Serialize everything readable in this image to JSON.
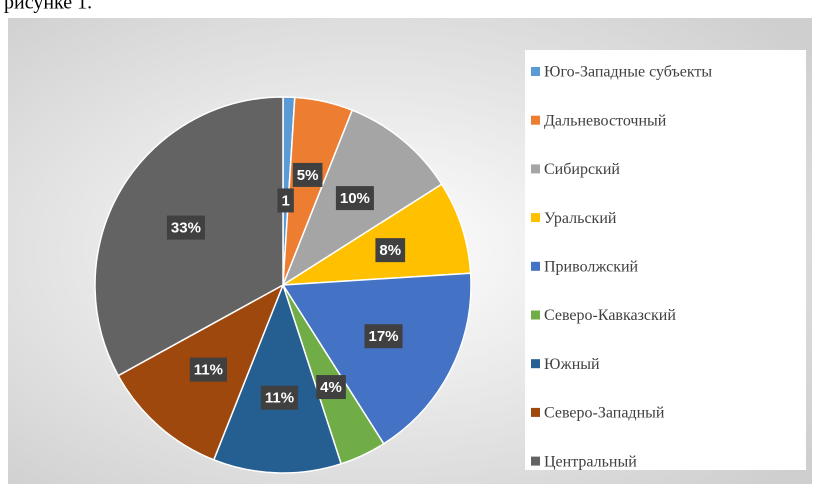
{
  "text_above": "рисунке 1.",
  "chart_data": {
    "type": "pie",
    "categories": [
      "Юго-Западные субъекты",
      "Дальневосточный",
      "Сибирский",
      "Уральский",
      "Приволжский",
      "Северо-Кавказский",
      "Южный",
      "Северо-Западный",
      "Центральный"
    ],
    "values": [
      1,
      5,
      10,
      8,
      17,
      4,
      11,
      11,
      33
    ],
    "value_labels": [
      "1",
      "5%",
      "10%",
      "8%",
      "17%",
      "4%",
      "11%",
      "11%",
      "33%"
    ],
    "colors": [
      "#5b9bd5",
      "#ed7d31",
      "#a5a5a5",
      "#ffc000",
      "#4472c4",
      "#70ad47",
      "#255e91",
      "#9e480e",
      "#636363"
    ],
    "legend": "right"
  }
}
